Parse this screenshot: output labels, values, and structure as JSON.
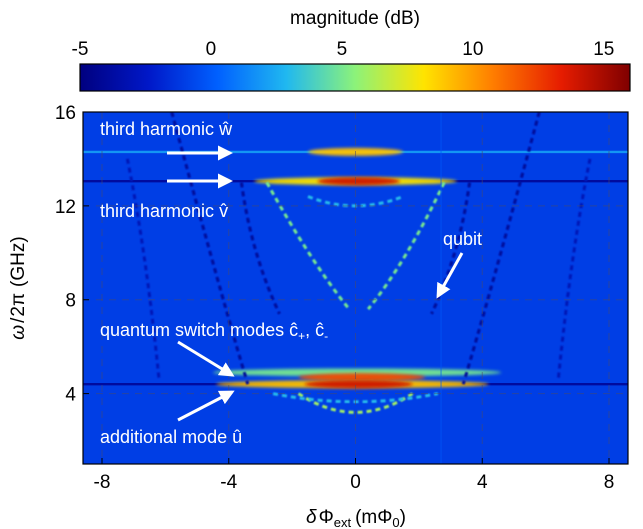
{
  "chart_data": {
    "type": "heatmap",
    "colorbar": {
      "title": "magnitude (dB)",
      "range": [
        -5,
        16
      ],
      "ticks": [
        "-5",
        "0",
        "5",
        "10",
        "15"
      ],
      "tick_values": [
        -5,
        0,
        5,
        10,
        15
      ],
      "colormap": [
        "#00007f",
        "#0018c8",
        "#0060ff",
        "#20b8f0",
        "#8cf27a",
        "#ffe400",
        "#ff7e00",
        "#e61c00",
        "#7f0000"
      ]
    },
    "x_axis": {
      "label_parts": [
        "δ",
        "Φ",
        "ext",
        "(m",
        "Φ",
        "0",
        ")"
      ],
      "range": [
        -8.6,
        8.6
      ],
      "ticks": [
        "-8",
        "-4",
        "0",
        "4",
        "8"
      ],
      "tick_values": [
        -8,
        -4,
        0,
        4,
        8
      ]
    },
    "y_axis": {
      "label_parts": [
        "ω",
        "/",
        "2π",
        "(GHz)"
      ],
      "range": [
        1,
        16
      ],
      "ticks": [
        "4",
        "8",
        "12",
        "16"
      ],
      "tick_values": [
        4,
        8,
        12,
        16
      ]
    },
    "background_level_db": -1,
    "features": [
      {
        "kind": "hline",
        "y": 14.3,
        "x_range": [
          -8.6,
          8.6
        ],
        "level_db": 2
      },
      {
        "kind": "hline",
        "y": 13.05,
        "x_range": [
          -8.6,
          8.6
        ],
        "level_db": -4
      },
      {
        "kind": "hline",
        "y": 4.4,
        "x_range": [
          -8.6,
          8.6
        ],
        "level_db": -4
      },
      {
        "kind": "band",
        "y": 13.05,
        "x_range": [
          -3.2,
          3.2
        ],
        "level_db": 8
      },
      {
        "kind": "band",
        "y": 13.05,
        "x_range": [
          -1.2,
          1.4
        ],
        "level_db": 14
      },
      {
        "kind": "band",
        "y": 14.3,
        "x_range": [
          -1.5,
          1.5
        ],
        "level_db": 9
      },
      {
        "kind": "band",
        "y": 4.9,
        "x_range": [
          -4.5,
          4.6
        ],
        "level_db": 5
      },
      {
        "kind": "band",
        "y": 4.7,
        "x_range": [
          -1.8,
          2.2
        ],
        "level_db": 12
      },
      {
        "kind": "band",
        "y": 4.4,
        "x_range": [
          -4.4,
          4.2
        ],
        "level_db": 9
      },
      {
        "kind": "band",
        "y": 4.4,
        "x_range": [
          -1.6,
          1.8
        ],
        "level_db": 14
      },
      {
        "kind": "arc",
        "points": [
          [
            -5.8,
            16
          ],
          [
            -4.2,
            8
          ],
          [
            -3.4,
            4.4
          ]
        ],
        "level_db": -4
      },
      {
        "kind": "arc",
        "points": [
          [
            5.8,
            16
          ],
          [
            4.2,
            8
          ],
          [
            3.4,
            4.4
          ]
        ],
        "level_db": -4
      },
      {
        "kind": "arc",
        "points": [
          [
            -7.2,
            14
          ],
          [
            -6.6,
            10
          ],
          [
            -6.2,
            4.6
          ]
        ],
        "level_db": -3
      },
      {
        "kind": "arc",
        "points": [
          [
            7.4,
            14
          ],
          [
            6.8,
            10
          ],
          [
            6.4,
            4.6
          ]
        ],
        "level_db": -3
      },
      {
        "kind": "arc",
        "points": [
          [
            -2.8,
            13
          ],
          [
            -1.4,
            9.6
          ],
          [
            -0.2,
            7.6
          ]
        ],
        "level_db": 5
      },
      {
        "kind": "arc",
        "points": [
          [
            2.8,
            13
          ],
          [
            1.6,
            9.6
          ],
          [
            0.4,
            7.6
          ]
        ],
        "level_db": 5
      },
      {
        "kind": "arc",
        "points": [
          [
            -1.5,
            12.4
          ],
          [
            0,
            11.6
          ],
          [
            1.5,
            12.4
          ]
        ],
        "level_db": 3
      },
      {
        "kind": "arc",
        "points": [
          [
            -3.6,
            13
          ],
          [
            -3.3,
            10
          ],
          [
            -2.4,
            7.4
          ]
        ],
        "level_db": -4
      },
      {
        "kind": "arc",
        "points": [
          [
            3.6,
            13
          ],
          [
            3.3,
            10
          ],
          [
            2.4,
            7.4
          ]
        ],
        "level_db": -4
      },
      {
        "kind": "arc",
        "points": [
          [
            -1.8,
            4
          ],
          [
            0,
            2.4
          ],
          [
            1.8,
            4
          ]
        ],
        "level_db": 6
      },
      {
        "kind": "arc",
        "points": [
          [
            -2.6,
            4
          ],
          [
            0,
            3.3
          ],
          [
            2.6,
            4
          ]
        ],
        "level_db": 3
      },
      {
        "kind": "vline",
        "x": 2.7,
        "y_range": [
          1,
          16
        ],
        "level_db": 0
      }
    ],
    "annotations": [
      {
        "parts": [
          "third harmonic ",
          "ŵ"
        ]
      },
      {
        "parts": [
          "third harmonic ",
          "v̂"
        ]
      },
      {
        "parts": [
          "qubit"
        ]
      },
      {
        "parts": [
          "quantum switch modes ",
          "ĉ",
          "+",
          ", ",
          "ĉ",
          "-"
        ]
      },
      {
        "parts": [
          "additional mode ",
          "û"
        ]
      }
    ]
  }
}
